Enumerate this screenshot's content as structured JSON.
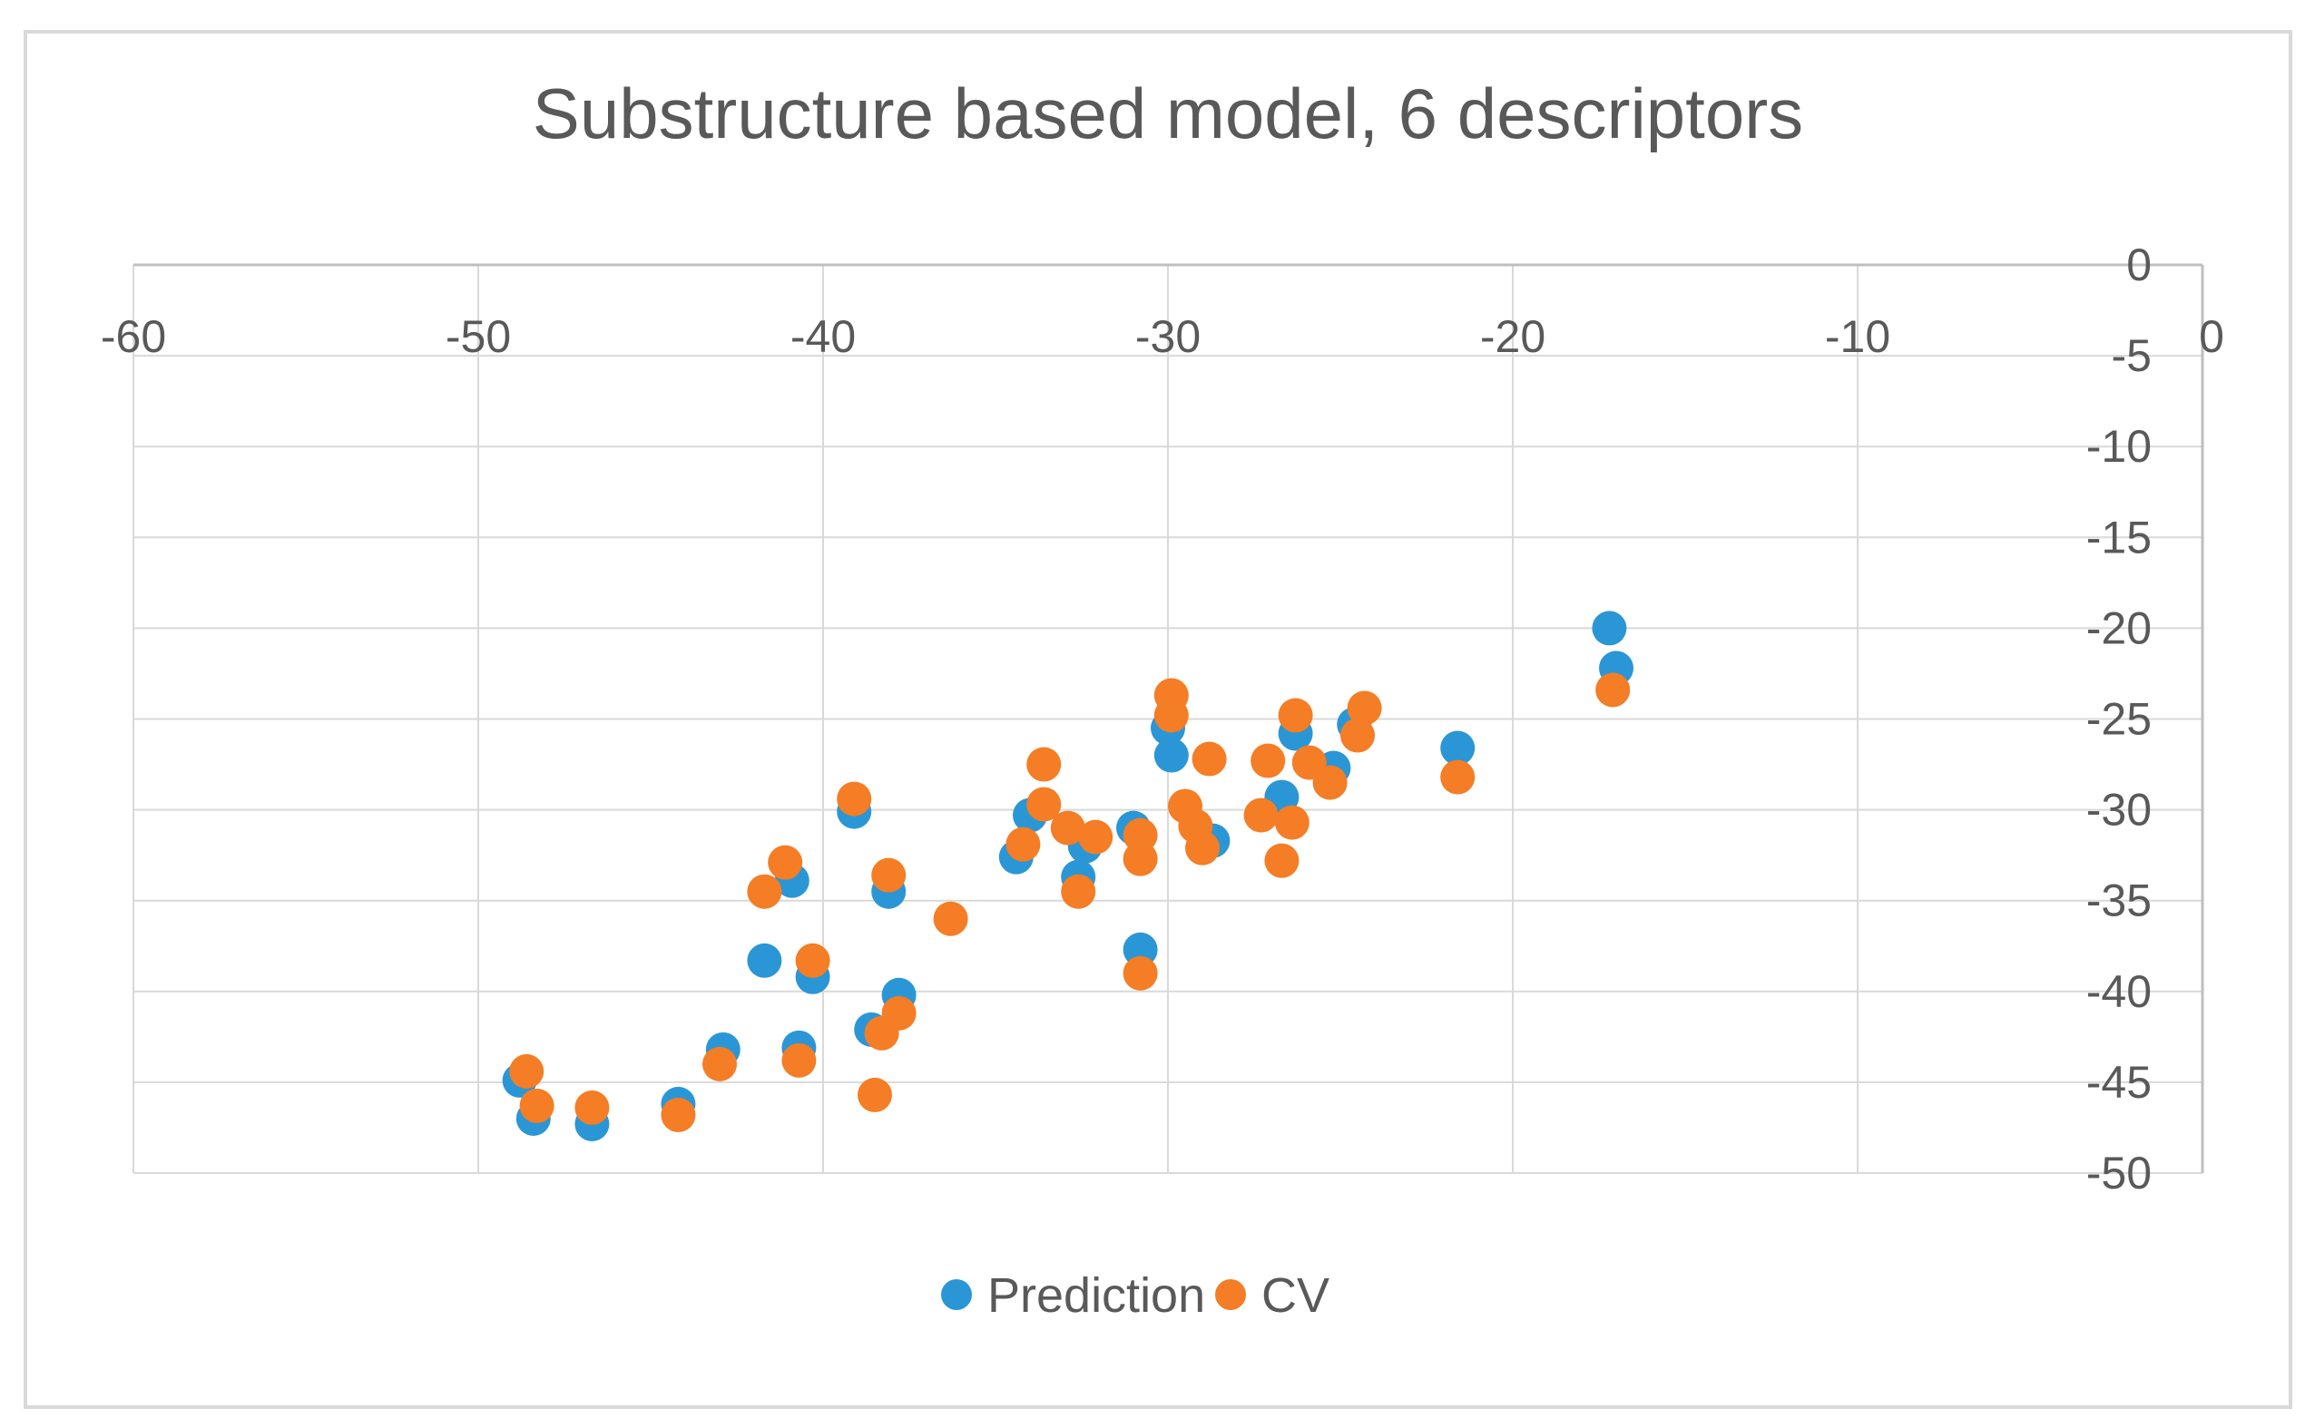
{
  "window": {
    "background_color": "#FFFFFF",
    "frame_border_color": "#D9D9D9"
  },
  "chart_data": {
    "type": "scatter",
    "title": "Substructure based model, 6 descriptors",
    "xlabel": "",
    "ylabel": "",
    "grid": true,
    "x_axis": {
      "min": -60,
      "max": 0,
      "tick_step": 10,
      "tick_labels": [
        "-60",
        "-50",
        "-40",
        "-30",
        "-20",
        "-10",
        "0"
      ],
      "labels_position": "top"
    },
    "y_axis": {
      "min": -50,
      "max": 0,
      "tick_step": 5,
      "tick_labels": [
        "0",
        "-5",
        "-10",
        "-15",
        "-20",
        "-25",
        "-30",
        "-35",
        "-40",
        "-45",
        "-50"
      ],
      "labels_position": "right"
    },
    "legend_position": "bottom",
    "marker_radius": 19,
    "series": [
      {
        "name": "Prediction",
        "color": "#2B96D5",
        "points": [
          [
            -48.8,
            -44.9
          ],
          [
            -48.4,
            -47.0
          ],
          [
            -46.7,
            -47.3
          ],
          [
            -44.2,
            -46.2
          ],
          [
            -42.9,
            -43.2
          ],
          [
            -40.7,
            -43.1
          ],
          [
            -41.7,
            -38.3
          ],
          [
            -40.3,
            -39.2
          ],
          [
            -38.6,
            -42.1
          ],
          [
            -37.8,
            -40.2
          ],
          [
            -39.1,
            -30.1
          ],
          [
            -40.9,
            -33.9
          ],
          [
            -38.1,
            -34.5
          ],
          [
            -34.4,
            -32.6
          ],
          [
            -34.0,
            -30.3
          ],
          [
            -32.4,
            -32.0
          ],
          [
            -32.6,
            -33.7
          ],
          [
            -31.0,
            -31.0
          ],
          [
            -30.8,
            -37.7
          ],
          [
            -28.7,
            -31.7
          ],
          [
            -30.0,
            -25.5
          ],
          [
            -29.9,
            -27.0
          ],
          [
            -26.7,
            -29.3
          ],
          [
            -26.3,
            -25.8
          ],
          [
            -25.2,
            -27.7
          ],
          [
            -24.6,
            -25.3
          ],
          [
            -21.6,
            -26.6
          ],
          [
            -17.2,
            -20.0
          ],
          [
            -17.0,
            -22.2
          ]
        ]
      },
      {
        "name": "CV",
        "color": "#F47D25",
        "points": [
          [
            -48.6,
            -44.4
          ],
          [
            -48.3,
            -46.3
          ],
          [
            -46.7,
            -46.4
          ],
          [
            -44.2,
            -46.8
          ],
          [
            -43.0,
            -44.0
          ],
          [
            -40.7,
            -43.8
          ],
          [
            -38.5,
            -45.7
          ],
          [
            -40.3,
            -38.3
          ],
          [
            -41.1,
            -32.9
          ],
          [
            -41.7,
            -34.5
          ],
          [
            -39.1,
            -29.4
          ],
          [
            -38.1,
            -33.6
          ],
          [
            -37.8,
            -41.2
          ],
          [
            -38.3,
            -42.3
          ],
          [
            -36.3,
            -36.0
          ],
          [
            -34.2,
            -31.9
          ],
          [
            -33.6,
            -29.7
          ],
          [
            -33.6,
            -27.5
          ],
          [
            -32.9,
            -31.0
          ],
          [
            -32.6,
            -34.5
          ],
          [
            -32.1,
            -31.5
          ],
          [
            -30.8,
            -39.0
          ],
          [
            -30.8,
            -31.4
          ],
          [
            -30.8,
            -32.7
          ],
          [
            -29.5,
            -29.8
          ],
          [
            -29.2,
            -30.9
          ],
          [
            -29.0,
            -32.1
          ],
          [
            -29.9,
            -23.7
          ],
          [
            -29.9,
            -24.8
          ],
          [
            -28.8,
            -27.2
          ],
          [
            -27.1,
            -27.3
          ],
          [
            -27.3,
            -30.3
          ],
          [
            -26.4,
            -30.7
          ],
          [
            -26.7,
            -32.8
          ],
          [
            -26.3,
            -24.8
          ],
          [
            -25.9,
            -27.4
          ],
          [
            -25.3,
            -28.5
          ],
          [
            -24.3,
            -24.4
          ],
          [
            -24.5,
            -25.9
          ],
          [
            -21.6,
            -28.2
          ],
          [
            -17.1,
            -23.4
          ]
        ]
      }
    ]
  },
  "styles": {
    "title_color": "#595959",
    "axis_label_color": "#595959",
    "gridline_color": "#D9D9D9",
    "axis_line_color": "#BFBFBF"
  }
}
